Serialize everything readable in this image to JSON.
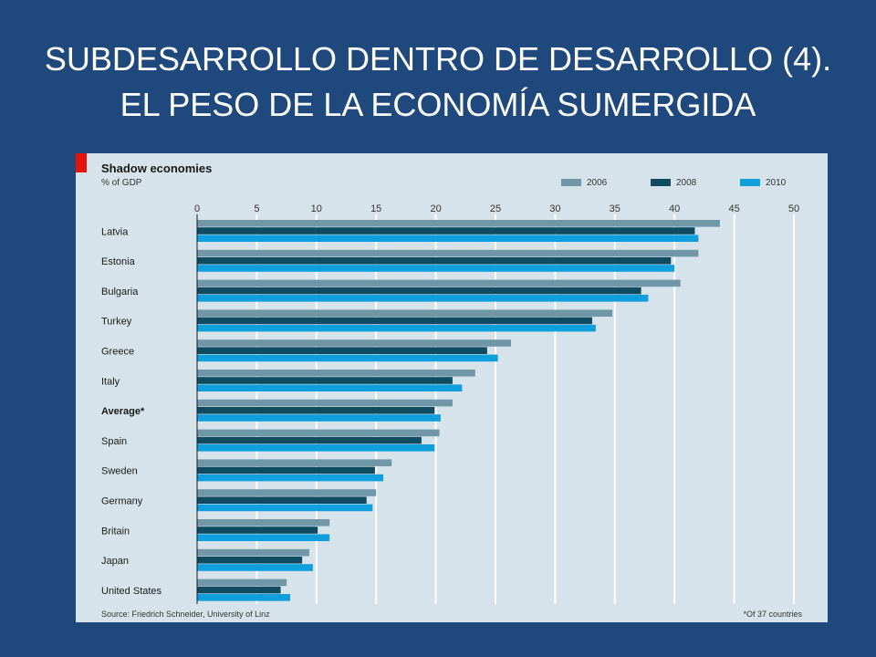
{
  "slide": {
    "title_line1": "SUBDESARROLLO DENTRO DE DESARROLLO (4).",
    "title_line2": "EL PESO DE LA ECONOMÍA SUMERGIDA"
  },
  "colors": {
    "background": "#1f497d",
    "panel": "#d6e3ea",
    "accent_red": "#e3120b",
    "series_2006": "#6f97a8",
    "series_2008": "#0f4c62",
    "series_2010": "#0e9fdc"
  },
  "chart_data": {
    "type": "bar",
    "orientation": "horizontal",
    "title": "Shadow economies",
    "subtitle": "% of GDP",
    "xlim": [
      0,
      50
    ],
    "x_ticks": [
      "0",
      "5",
      "10",
      "15",
      "20",
      "25",
      "30",
      "35",
      "40",
      "45",
      "50"
    ],
    "grid": true,
    "legend_position": "top-right",
    "categories": [
      "Latvia",
      "Estonia",
      "Bulgaria",
      "Turkey",
      "Greece",
      "Italy",
      "Average*",
      "Spain",
      "Sweden",
      "Germany",
      "Britain",
      "Japan",
      "United States"
    ],
    "series": [
      {
        "name": "2006",
        "values": [
          43.8,
          42.0,
          40.5,
          34.8,
          26.3,
          23.3,
          21.4,
          20.3,
          16.3,
          15.0,
          11.1,
          9.4,
          7.5
        ]
      },
      {
        "name": "2008",
        "values": [
          41.7,
          39.7,
          37.2,
          33.1,
          24.3,
          21.4,
          19.9,
          18.8,
          14.9,
          14.2,
          10.1,
          8.8,
          7.0
        ]
      },
      {
        "name": "2010",
        "values": [
          42.0,
          40.0,
          37.8,
          33.4,
          25.2,
          22.2,
          20.4,
          19.9,
          15.6,
          14.7,
          11.1,
          9.7,
          7.8
        ]
      }
    ],
    "source": "Source: Friedrich Schneider, University of Linz",
    "footnote": "*Of 37 countries"
  }
}
